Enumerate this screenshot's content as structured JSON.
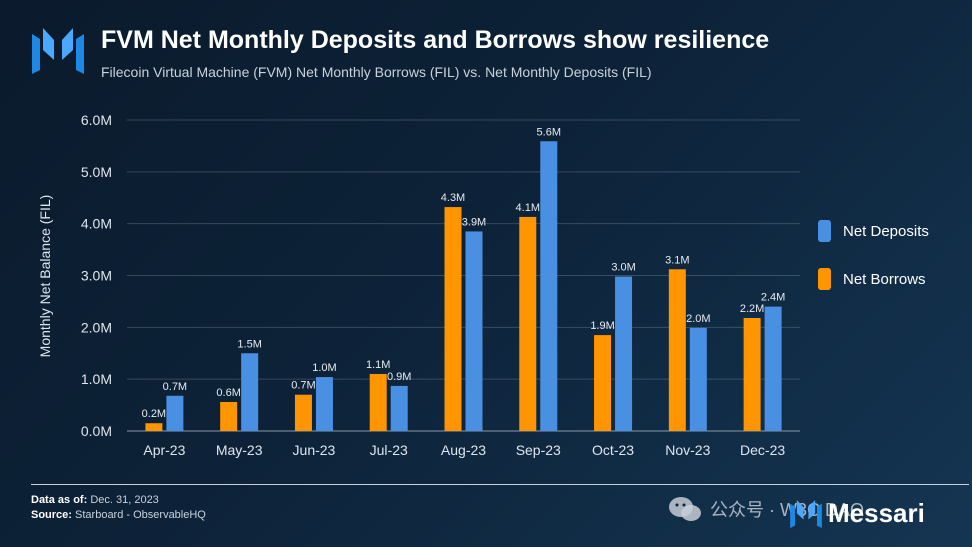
{
  "header": {
    "title": "FVM Net Monthly Deposits and Borrows show resilience",
    "subtitle": "Filecoin Virtual Machine (FVM) Net Monthly Borrows (FIL) vs. Net Monthly Deposits (FIL)"
  },
  "footer": {
    "data_as_of_label": "Data as of:",
    "data_as_of_value": "Dec. 31, 2023",
    "source_label": "Source:",
    "source_value": "Starboard - ObservableHQ",
    "watermark_text": "公众号 · W3C DAO",
    "brand_name": "Messari"
  },
  "colors": {
    "net_deposits": "#4a90e2",
    "net_borrows": "#ff9500",
    "brand_blue": "#1e88e5"
  },
  "chart_data": {
    "type": "bar",
    "title": "FVM Net Monthly Deposits and Borrows show resilience",
    "xlabel": "",
    "ylabel": "Monthly Net Balance (FIL)",
    "ylim": [
      0,
      6000000
    ],
    "yticks": [
      "0.0M",
      "1.0M",
      "2.0M",
      "3.0M",
      "4.0M",
      "5.0M",
      "6.0M"
    ],
    "grid": true,
    "legend_position": "right",
    "categories": [
      "Apr-23",
      "May-23",
      "Jun-23",
      "Jul-23",
      "Aug-23",
      "Sep-23",
      "Oct-23",
      "Nov-23",
      "Dec-23"
    ],
    "series": [
      {
        "name": "Net Borrows",
        "color": "#ff9500",
        "values": [
          150000,
          560000,
          700000,
          1100000,
          4320000,
          4130000,
          1850000,
          3120000,
          2180000
        ],
        "labels": [
          "0.2M",
          "0.6M",
          "0.7M",
          "1.1M",
          "4.3M",
          "4.1M",
          "1.9M",
          "3.1M",
          "2.2M"
        ]
      },
      {
        "name": "Net Deposits",
        "color": "#4a90e2",
        "values": [
          680000,
          1500000,
          1040000,
          870000,
          3850000,
          5590000,
          2980000,
          1990000,
          2400000
        ],
        "labels": [
          "0.7M",
          "1.5M",
          "1.0M",
          "0.9M",
          "3.9M",
          "5.6M",
          "3.0M",
          "2.0M",
          "2.4M"
        ]
      }
    ]
  }
}
